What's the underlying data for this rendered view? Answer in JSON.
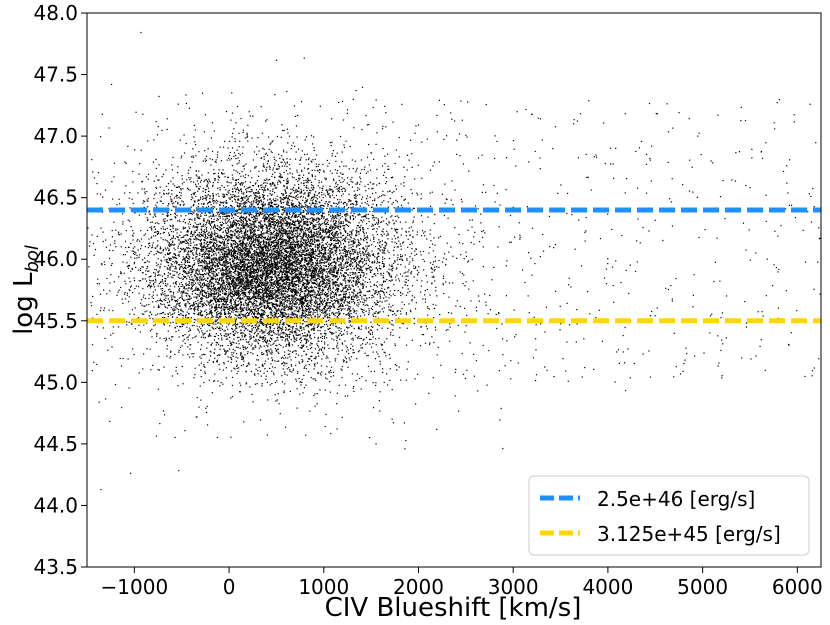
{
  "chart_data": {
    "type": "scatter",
    "title": "",
    "xlabel": "CIV Blueshift [km/s]",
    "ylabel": {
      "base": "log L",
      "sub": "bol"
    },
    "xlim": [
      -1500,
      6250
    ],
    "ylim": [
      43.5,
      48.0
    ],
    "xticks": [
      -1000,
      0,
      1000,
      2000,
      3000,
      4000,
      5000,
      6000
    ],
    "xtick_labels": [
      "−1000",
      "0",
      "1000",
      "2000",
      "3000",
      "4000",
      "5000",
      "6000"
    ],
    "yticks": [
      43.5,
      44.0,
      44.5,
      45.0,
      45.5,
      46.0,
      46.5,
      47.0,
      47.5,
      48.0
    ],
    "ytick_labels": [
      "43.5",
      "44.0",
      "44.5",
      "45.0",
      "45.5",
      "46.0",
      "46.5",
      "47.0",
      "47.5",
      "48.0"
    ],
    "grid": false,
    "legend_position": "lower-right",
    "scatter_color": "#000000",
    "scatter_description": "dense cloud of many thousands of points, core near (400, 45.95), tail extending to higher blueshift",
    "scatter_distribution": {
      "center_x": 450,
      "center_y": 45.95,
      "core_sigma_x": 600,
      "core_sigma_y": 0.36
    },
    "hlines": [
      {
        "name": "2.5e+46 [erg/s]",
        "y": 46.4,
        "color": "#1e90ff",
        "style": "dashed"
      },
      {
        "name": "3.125e+45 [erg/s]",
        "y": 45.5,
        "color": "#ffd700",
        "style": "dashed"
      }
    ]
  }
}
